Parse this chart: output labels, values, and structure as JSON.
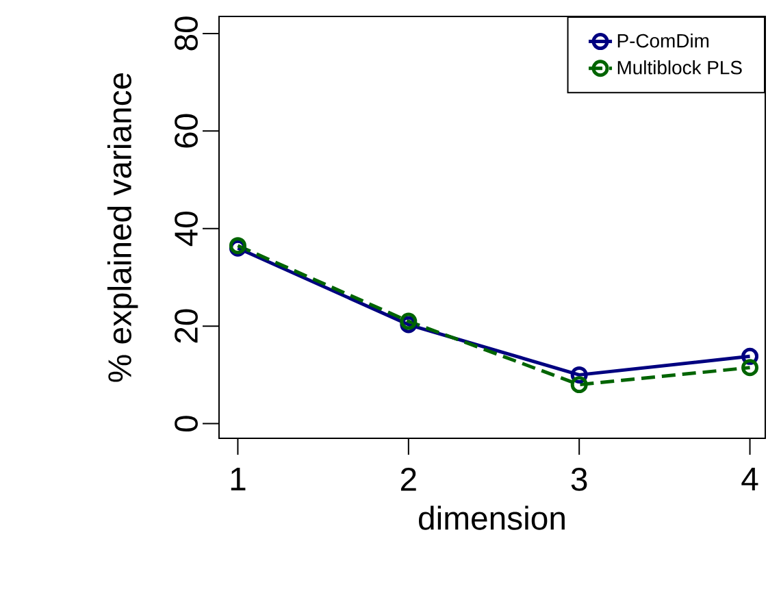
{
  "chart_data": {
    "type": "line",
    "xlabel": "dimension",
    "ylabel": "% explained variance",
    "x": [
      1,
      2,
      3,
      4
    ],
    "series": [
      {
        "name": "P-ComDim",
        "color": "#000080",
        "line_style": "solid",
        "values": [
          36,
          20.3,
          10,
          13.8
        ]
      },
      {
        "name": "Multiblock PLS",
        "color": "#006400",
        "line_style": "dashed",
        "values": [
          36.5,
          21,
          8,
          11.5
        ]
      }
    ],
    "xlim": [
      0.89,
      4.09
    ],
    "ylim": [
      -3,
      83.5
    ],
    "xticks": [
      1,
      2,
      3,
      4
    ],
    "yticks": [
      0,
      20,
      40,
      60,
      80
    ],
    "marker": "circle",
    "legend": "top right",
    "grid": false
  }
}
